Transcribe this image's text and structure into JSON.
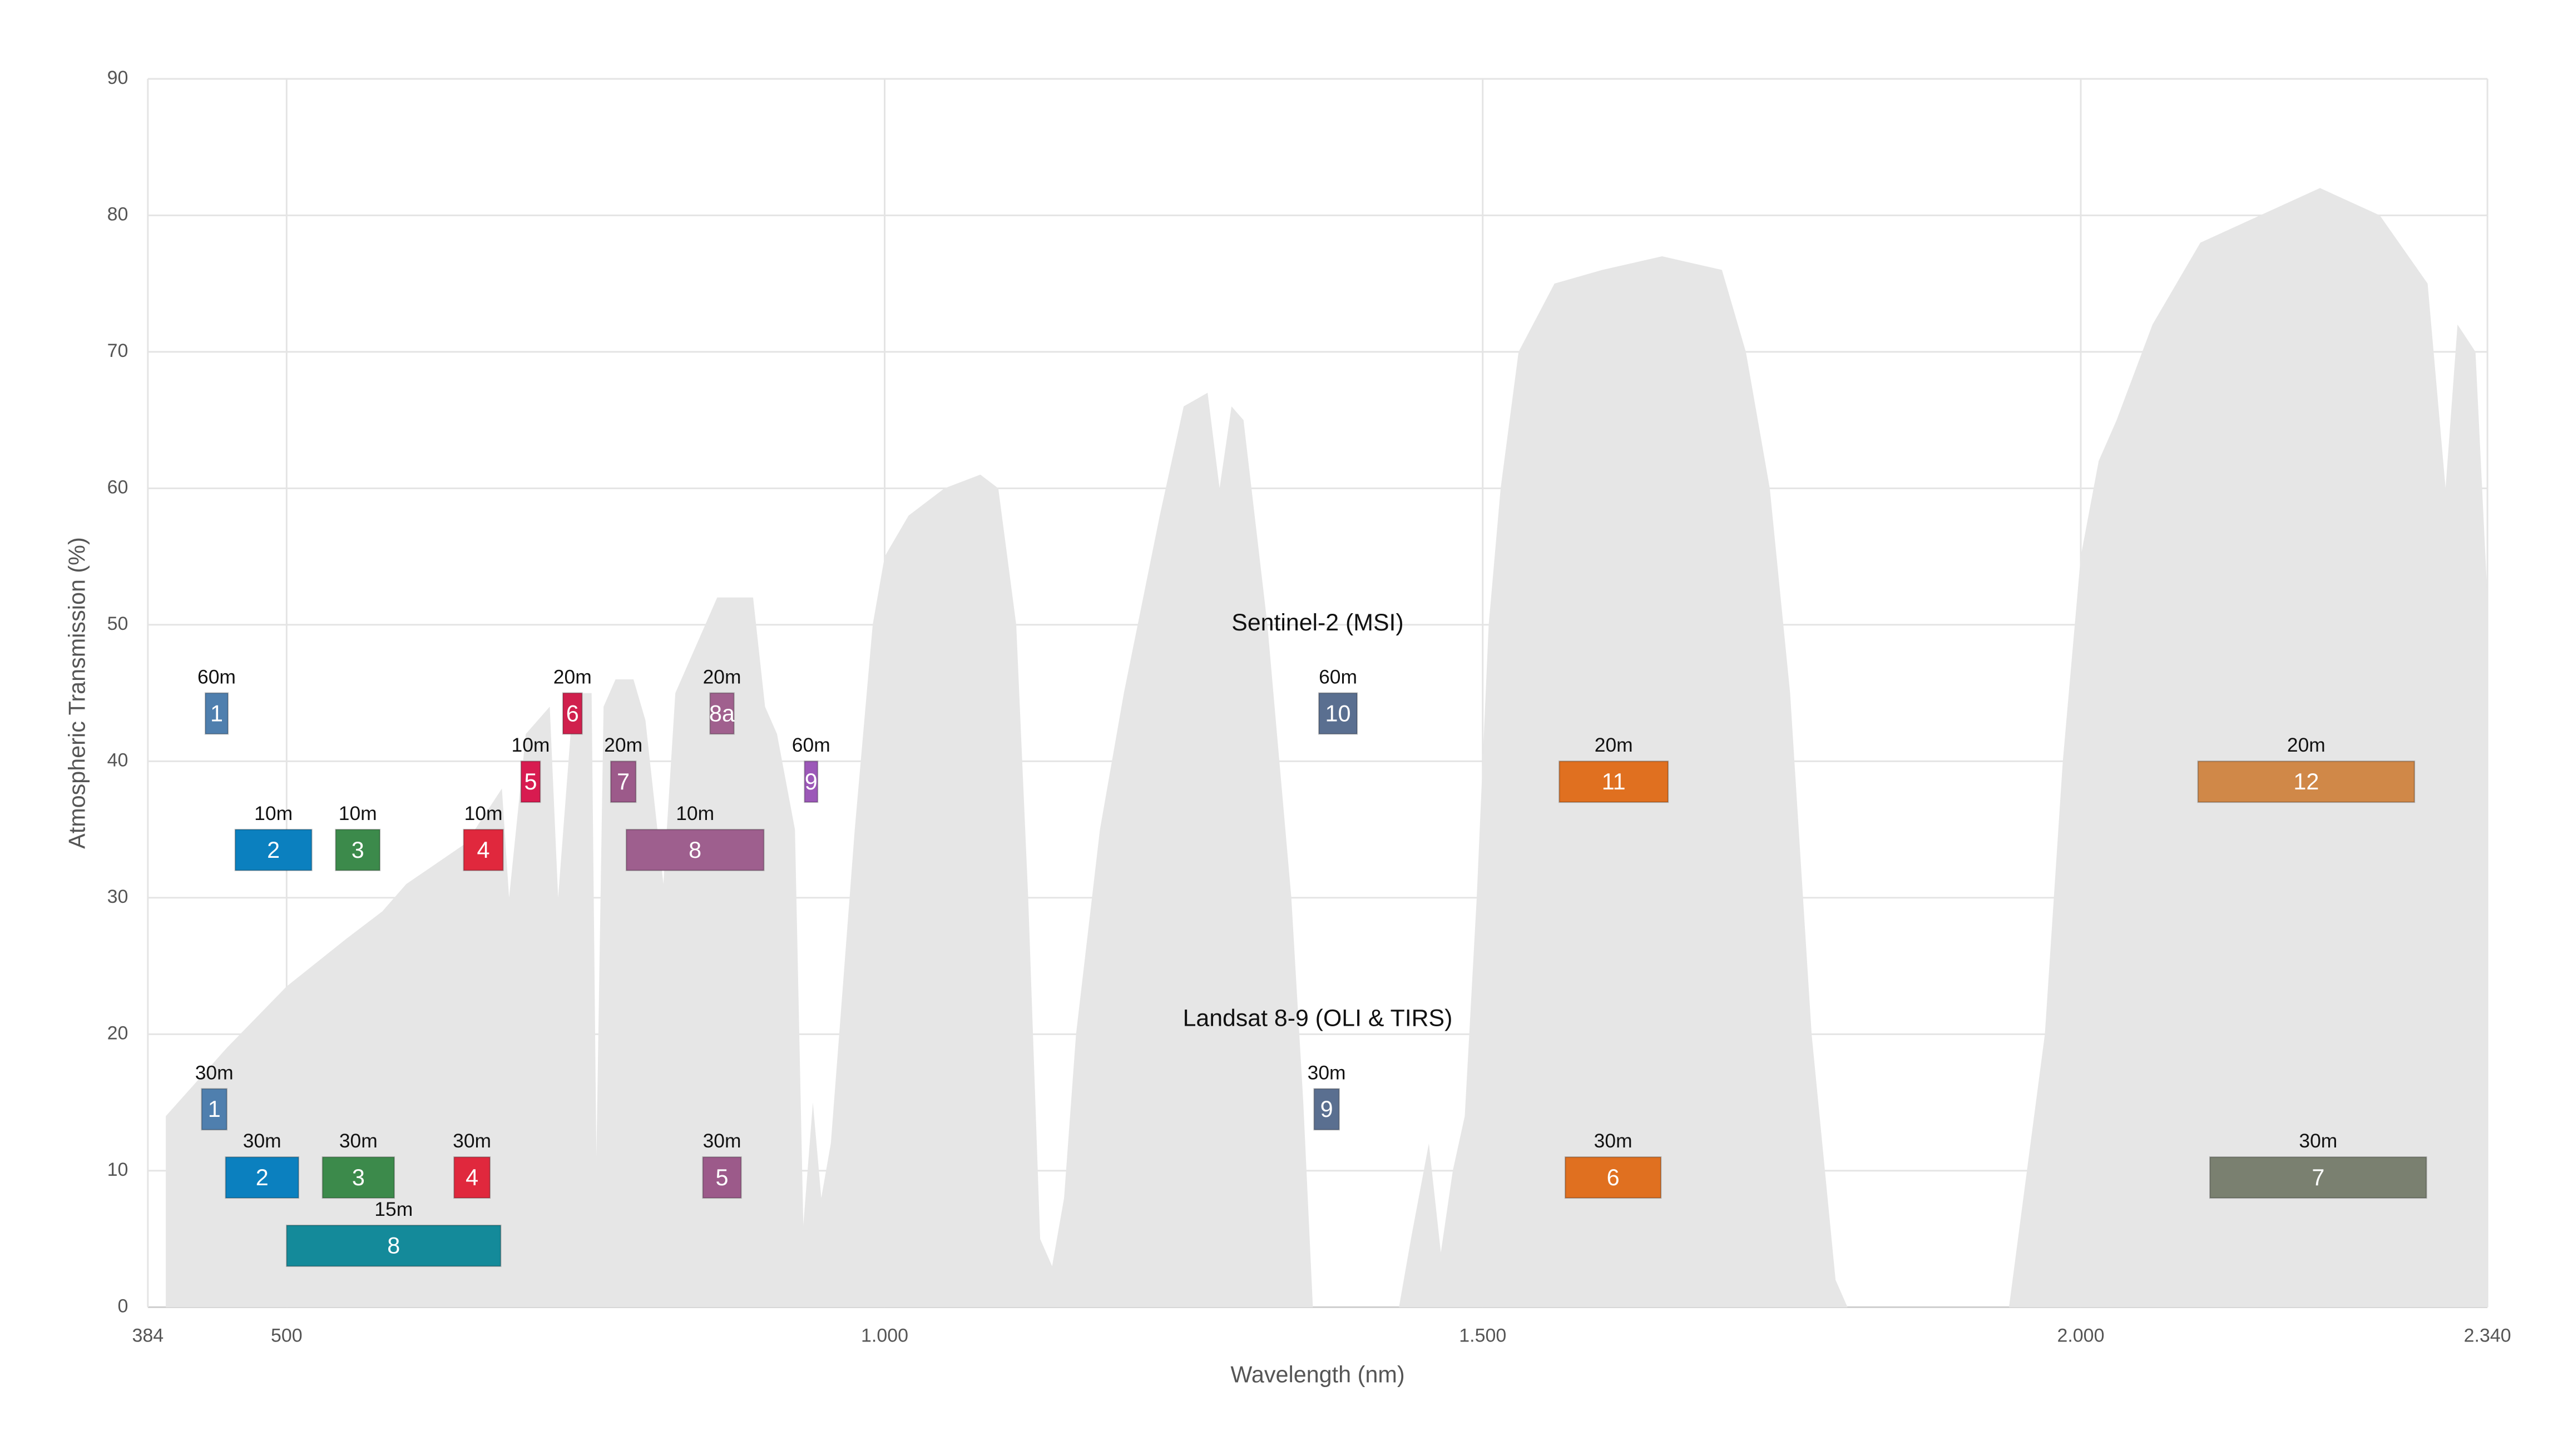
{
  "chart_data": {
    "type": "area",
    "xlabel": "Wavelength (nm)",
    "ylabel": "Atmospheric Transmission (%)",
    "xlim": [
      384,
      2340
    ],
    "ylim": [
      0,
      90
    ],
    "xticks": [
      384,
      500,
      {
        "value": 1000,
        "label": "1.000"
      },
      {
        "value": 1500,
        "label": "1.500"
      },
      {
        "value": 2000,
        "label": "2.000"
      },
      {
        "value": 2340,
        "label": "2.340"
      }
    ],
    "yticks": [
      0,
      10,
      20,
      30,
      40,
      50,
      60,
      70,
      80,
      90
    ],
    "grid": true,
    "transmission": {
      "color": "#e6e6e6",
      "x": [
        399,
        450,
        500,
        550,
        580,
        600,
        650,
        680,
        686,
        700,
        720,
        727,
        740,
        755,
        759,
        765,
        775,
        790,
        800,
        815,
        825,
        840,
        860,
        890,
        900,
        910,
        925,
        932,
        940,
        947,
        955,
        962,
        975,
        990,
        1000,
        1020,
        1050,
        1080,
        1095,
        1110,
        1120,
        1130,
        1140,
        1150,
        1160,
        1180,
        1200,
        1230,
        1250,
        1270,
        1280,
        1290,
        1300,
        1320,
        1340,
        1350,
        1358,
        1430,
        1440,
        1455,
        1465,
        1475,
        1485,
        1495,
        1505,
        1515,
        1530,
        1560,
        1600,
        1650,
        1700,
        1720,
        1740,
        1757,
        1775,
        1795,
        1805,
        1940,
        1955,
        1970,
        1985,
        2000,
        2015,
        2030,
        2060,
        2100,
        2150,
        2200,
        2250,
        2290,
        2305,
        2315,
        2330,
        2340
      ],
      "y": [
        14,
        19,
        23.5,
        27,
        29,
        31,
        34,
        38,
        30,
        42,
        44,
        30,
        45,
        45,
        11,
        44,
        46,
        46,
        43,
        31,
        45,
        48,
        52,
        52,
        44,
        42,
        35,
        6,
        15,
        8,
        12,
        20,
        35,
        50,
        55,
        58,
        60,
        61,
        60,
        50,
        30,
        5,
        3,
        8,
        20,
        35,
        45,
        58,
        66,
        67,
        60,
        66,
        65,
        50,
        30,
        15,
        0,
        0,
        5,
        12,
        4,
        10,
        14,
        30,
        50,
        60,
        70,
        75,
        76,
        77,
        76,
        70,
        60,
        45,
        20,
        2,
        0,
        0,
        10,
        20,
        40,
        55,
        62,
        65,
        72,
        78,
        80,
        82,
        80,
        75,
        60,
        72,
        70,
        52
      ]
    },
    "groups": [
      {
        "name": "Sentinel-2 (MSI)",
        "bands": [
          {
            "name": "1",
            "resolution": "60m",
            "range": [
              432,
              451
            ],
            "y": [
              42,
              45
            ],
            "color": "#4f7fae"
          },
          {
            "name": "2",
            "resolution": "10m",
            "range": [
              457,
              521
            ],
            "y": [
              32,
              35
            ],
            "color": "#0b80bf"
          },
          {
            "name": "3",
            "resolution": "10m",
            "range": [
              541,
              578
            ],
            "y": [
              32,
              35
            ],
            "color": "#3c8a4b"
          },
          {
            "name": "4",
            "resolution": "10m",
            "range": [
              648,
              681
            ],
            "y": [
              32,
              35
            ],
            "color": "#e0283d"
          },
          {
            "name": "5",
            "resolution": "10m",
            "range": [
              696,
              712
            ],
            "y": [
              37,
              40
            ],
            "color": "#d81b50"
          },
          {
            "name": "6",
            "resolution": "20m",
            "range": [
              731,
              747
            ],
            "y": [
              42,
              45
            ],
            "color": "#d0204d"
          },
          {
            "name": "7",
            "resolution": "20m",
            "range": [
              771,
              792
            ],
            "y": [
              37,
              40
            ],
            "color": "#9c5a8a"
          },
          {
            "name": "8",
            "resolution": "10m",
            "range": [
              784,
              899
            ],
            "y": [
              32,
              35
            ],
            "color": "#9e5f8e"
          },
          {
            "name": "8a",
            "resolution": "20m",
            "range": [
              854,
              874
            ],
            "y": [
              42,
              45
            ],
            "color": "#a0608e"
          },
          {
            "name": "9",
            "resolution": "60m",
            "range": [
              933,
              944
            ],
            "y": [
              37,
              40
            ],
            "color": "#9c58b8"
          },
          {
            "name": "10",
            "resolution": "60m",
            "range": [
              1363,
              1395
            ],
            "y": [
              42,
              45
            ],
            "color": "#5a6f90"
          },
          {
            "name": "11",
            "resolution": "20m",
            "range": [
              1564,
              1655
            ],
            "y": [
              37,
              40
            ],
            "color": "#e07020"
          },
          {
            "name": "12",
            "resolution": "20m",
            "range": [
              2098,
              2279
            ],
            "y": [
              37,
              40
            ],
            "color": "#d08848"
          }
        ]
      },
      {
        "name": "Landsat 8-9 (OLI & TIRS)",
        "bands": [
          {
            "name": "1",
            "resolution": "30m",
            "range": [
              429,
              450
            ],
            "y": [
              13,
              16
            ],
            "color": "#4f7fae"
          },
          {
            "name": "2",
            "resolution": "30m",
            "range": [
              449,
              510
            ],
            "y": [
              8,
              11
            ],
            "color": "#0b80bf"
          },
          {
            "name": "3",
            "resolution": "30m",
            "range": [
              530,
              590
            ],
            "y": [
              8,
              11
            ],
            "color": "#3c8a4b"
          },
          {
            "name": "4",
            "resolution": "30m",
            "range": [
              640,
              670
            ],
            "y": [
              8,
              11
            ],
            "color": "#e0283d"
          },
          {
            "name": "5",
            "resolution": "30m",
            "range": [
              848,
              880
            ],
            "y": [
              8,
              11
            ],
            "color": "#9c5a8a"
          },
          {
            "name": "6",
            "resolution": "30m",
            "range": [
              1569,
              1649
            ],
            "y": [
              8,
              11
            ],
            "color": "#e07020"
          },
          {
            "name": "7",
            "resolution": "30m",
            "range": [
              2108,
              2289
            ],
            "y": [
              8,
              11
            ],
            "color": "#7a8070"
          },
          {
            "name": "8",
            "resolution": "15m",
            "range": [
              500,
              679
            ],
            "y": [
              3,
              6
            ],
            "color": "#148a9a"
          },
          {
            "name": "9",
            "resolution": "30m",
            "range": [
              1359,
              1380
            ],
            "y": [
              13,
              16
            ],
            "color": "#5a6f90"
          }
        ]
      }
    ]
  }
}
